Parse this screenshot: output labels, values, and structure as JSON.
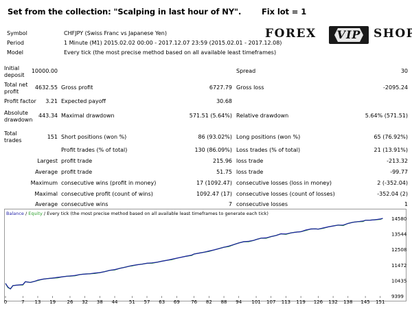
{
  "header": {
    "title": "Set from the collection: \"Scalping in last hour of NY\".",
    "lot": "Fix lot = 1"
  },
  "logo": {
    "left": "FOREX",
    "middle": "VIP",
    "right": "SHOP"
  },
  "info": {
    "symbol_label": "Symbol",
    "symbol": "CHFJPY (Swiss Franc vs Japanese Yen)",
    "period_label": "Period",
    "period": "1 Minute (M1) 2015.02.02 00:00 - 2017.12.07 23:59 (2015.02.01 - 2017.12.08)",
    "model_label": "Model",
    "model": "Every tick (the most precise method based on all available least timeframes)"
  },
  "stats": {
    "initial_deposit_label": "Initial deposit",
    "initial_deposit": "10000.00",
    "spread_label": "Spread",
    "spread": "30",
    "total_net_profit_label": "Total net profit",
    "total_net_profit": "4632.55",
    "gross_profit_label": "Gross profit",
    "gross_profit": "6727.79",
    "gross_loss_label": "Gross loss",
    "gross_loss": "-2095.24",
    "profit_factor_label": "Profit factor",
    "profit_factor": "3.21",
    "expected_payoff_label": "Expected payoff",
    "expected_payoff": "30.68",
    "absolute_drawdown_label": "Absolute drawdown",
    "absolute_drawdown": "443.34",
    "maximal_drawdown_label": "Maximal drawdown",
    "maximal_drawdown": "571.51 (5.64%)",
    "relative_drawdown_label": "Relative drawdown",
    "relative_drawdown": "5.64% (571.51)",
    "total_trades_label": "Total trades",
    "total_trades": "151",
    "short_positions_label": "Short positions (won %)",
    "short_positions": "86 (93.02%)",
    "long_positions_label": "Long positions (won %)",
    "long_positions": "65 (76.92%)",
    "profit_trades_label": "Profit trades (% of total)",
    "profit_trades": "130 (86.09%)",
    "loss_trades_label": "Loss trades (% of total)",
    "loss_trades": "21 (13.91%)",
    "largest_label": "Largest",
    "largest_profit_label": "profit trade",
    "largest_profit": "215.96",
    "largest_loss_label": "loss trade",
    "largest_loss": "-213.32",
    "average_label": "Average",
    "average_profit_label": "profit trade",
    "average_profit": "51.75",
    "average_loss_label": "loss trade",
    "average_loss": "-99.77",
    "maximum_label": "Maximum",
    "max_consec_wins_label": "consecutive wins (profit in money)",
    "max_consec_wins": "17 (1092.47)",
    "max_consec_losses_label": "consecutive losses (loss in money)",
    "max_consec_losses": "2 (-352.04)",
    "maximal_label": "Maximal",
    "maximal_consec_profit_label": "consecutive profit (count of wins)",
    "maximal_consec_profit": "1092.47 (17)",
    "maximal_consec_loss_label": "consecutive losses (count of losses)",
    "maximal_consec_loss": "-352.04 (2)",
    "average2_label": "Average",
    "avg_consec_wins_label": "consecutive wins",
    "avg_consec_wins": "7",
    "avg_consec_losses_label": "consecutive losses",
    "avg_consec_losses": "1"
  },
  "colors": {
    "balance": "#1f1fa8",
    "equity": "#2ca02c",
    "axis": "#444444"
  },
  "chart_data": {
    "type": "line",
    "legend": {
      "balance": "Balance",
      "sep1": " / ",
      "equity": "Equity",
      "sep2": " / ",
      "text": "Every tick (the most precise method based on all available least timeframes to generate each tick)"
    },
    "x_ticks": [
      "0",
      "7",
      "13",
      "19",
      "26",
      "32",
      "38",
      "44",
      "51",
      "57",
      "63",
      "69",
      "76",
      "82",
      "88",
      "94",
      "101",
      "107",
      "113",
      "119",
      "126",
      "132",
      "138",
      "145",
      "151"
    ],
    "y_ticks": [
      "14580",
      "13544",
      "12508",
      "11472",
      "10435",
      "9399"
    ],
    "ylim": [
      9399,
      14580
    ],
    "xlim": [
      0,
      153
    ],
    "series": [
      {
        "name": "Balance",
        "x": [
          0,
          1,
          2,
          3,
          5,
          7,
          8,
          10,
          12,
          13,
          15,
          17,
          19,
          21,
          23,
          25,
          26,
          28,
          30,
          32,
          34,
          36,
          38,
          40,
          42,
          44,
          46,
          48,
          50,
          51,
          53,
          55,
          57,
          59,
          61,
          63,
          65,
          67,
          69,
          71,
          73,
          75,
          76,
          78,
          80,
          82,
          84,
          86,
          88,
          90,
          92,
          94,
          96,
          98,
          100,
          101,
          103,
          105,
          107,
          109,
          111,
          113,
          115,
          117,
          119,
          121,
          123,
          125,
          126,
          128,
          130,
          132,
          134,
          136,
          138,
          140,
          142,
          144,
          145,
          147,
          149,
          151,
          152
        ],
        "y": [
          10240,
          9990,
          9870,
          10090,
          10130,
          10160,
          10350,
          10300,
          10390,
          10460,
          10520,
          10560,
          10590,
          10640,
          10680,
          10720,
          10730,
          10770,
          10830,
          10860,
          10880,
          10930,
          10960,
          11020,
          11110,
          11160,
          11240,
          11310,
          11390,
          11430,
          11480,
          11520,
          11580,
          11610,
          11650,
          11720,
          11780,
          11850,
          11920,
          11990,
          12060,
          12130,
          12200,
          12260,
          12320,
          12400,
          12470,
          12560,
          12650,
          12730,
          12830,
          12940,
          13020,
          13050,
          13110,
          13170,
          13260,
          13280,
          13360,
          13440,
          13550,
          13540,
          13610,
          13660,
          13690,
          13800,
          13870,
          13880,
          13860,
          13940,
          14010,
          14070,
          14130,
          14130,
          14240,
          14320,
          14360,
          14400,
          14450,
          14460,
          14490,
          14540,
          14580
        ]
      }
    ]
  }
}
